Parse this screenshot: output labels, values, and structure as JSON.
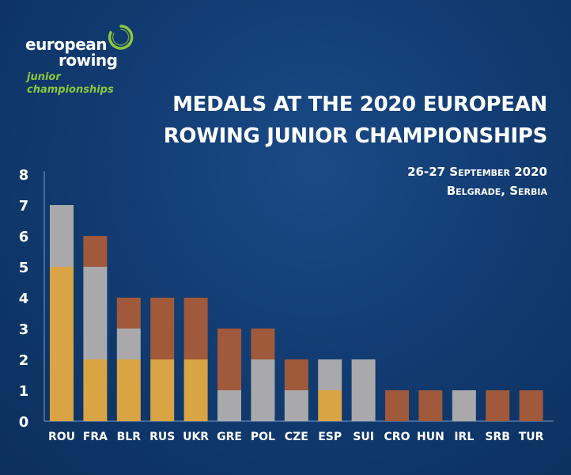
{
  "logo": {
    "line1": "european",
    "line2": "rowing",
    "line3": "junior",
    "line4": "championships"
  },
  "header": {
    "title_line1": "MEDALS AT THE 2020 EUROPEAN",
    "title_line2": "ROWING JUNIOR CHAMPIONSHIPS",
    "date": "26-27 September 2020",
    "location": "Belgrade, Serbia"
  },
  "colors": {
    "background": "#123c72",
    "gold": "#d9a444",
    "silver": "#a9a9ab",
    "bronze": "#a0593a",
    "logo_green": "#8dc63f"
  },
  "chart_data": {
    "type": "bar",
    "stacked": true,
    "title": "MEDALS AT THE 2020 EUROPEAN ROWING JUNIOR CHAMPIONSHIPS",
    "xlabel": "",
    "ylabel": "",
    "ylim": [
      0,
      8
    ],
    "yticks": [
      "0",
      "1",
      "2",
      "3",
      "4",
      "5",
      "6",
      "7",
      "8"
    ],
    "categories": [
      "ROU",
      "FRA",
      "BLR",
      "RUS",
      "UKR",
      "GRE",
      "POL",
      "CZE",
      "ESP",
      "SUI",
      "CRO",
      "HUN",
      "IRL",
      "SRB",
      "TUR"
    ],
    "series": [
      {
        "color": "#d9a444",
        "values": [
          5,
          2,
          2,
          2,
          2,
          0,
          0,
          0,
          1,
          0,
          0,
          0,
          0,
          0,
          0
        ]
      },
      {
        "color": "#a9a9ab",
        "values": [
          2,
          3,
          1,
          0,
          0,
          1,
          2,
          1,
          1,
          2,
          0,
          0,
          1,
          0,
          0
        ]
      },
      {
        "color": "#a0593a",
        "values": [
          0,
          1,
          1,
          2,
          2,
          2,
          1,
          1,
          0,
          0,
          1,
          1,
          0,
          1,
          1
        ]
      }
    ],
    "grid": false,
    "legend": "none"
  }
}
